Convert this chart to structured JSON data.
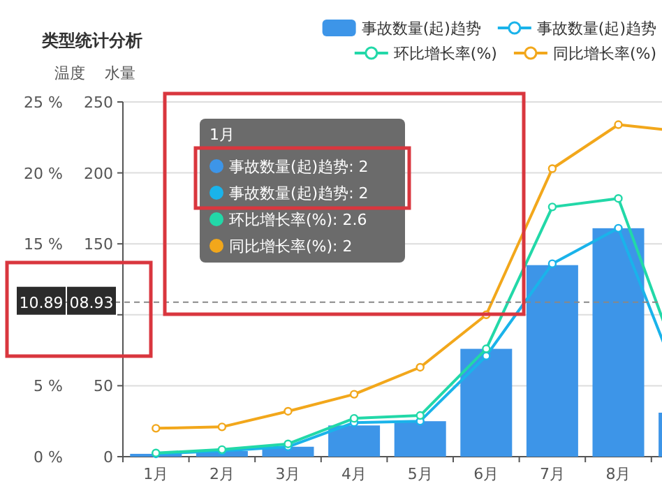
{
  "chart_data": {
    "type": "bar",
    "title": "类型统计分析",
    "ylabel": "温度",
    "y2label": "水量",
    "categories": [
      "1月",
      "2月",
      "3月",
      "4月",
      "5月",
      "6月",
      "7月",
      "8月",
      null
    ],
    "series": [
      {
        "name": "事故数量(起)趋势",
        "axis": "y2",
        "color": "#3d95e8",
        "values": [
          2,
          4,
          7,
          22,
          25,
          76,
          135,
          161,
          31
        ]
      },
      {
        "name": "事故数量(起)趋势",
        "type": "line",
        "axis": "y2",
        "color": "#1ab3ea",
        "values": [
          2,
          4,
          7,
          24,
          25,
          71,
          136,
          161,
          43
        ]
      },
      {
        "name": "环比增长率(%)",
        "type": "line",
        "axis": "y2",
        "color": "#22d8a8",
        "values": [
          2.6,
          5,
          9,
          27,
          29,
          76,
          176,
          182,
          55
        ]
      },
      {
        "name": "同比增长率(%)",
        "type": "line",
        "axis": "y",
        "color": "#f2a71b",
        "values": [
          2,
          2.1,
          3.2,
          4.4,
          6.3,
          10,
          20.3,
          23.4,
          22.9
        ]
      }
    ],
    "ylim": [
      0,
      25
    ],
    "yticks": [
      {
        "value": 0,
        "label": "0 %"
      },
      {
        "value": 5,
        "label": "5 %"
      },
      {
        "value": 10,
        "label": null
      },
      {
        "value": 15,
        "label": "15 %"
      },
      {
        "value": 20,
        "label": "20 %"
      },
      {
        "value": 25,
        "label": "25 %"
      }
    ],
    "y2lim": [
      0,
      250
    ],
    "y2ticks": [
      0,
      50,
      {
        "value": 100,
        "label": null
      },
      150,
      200,
      250
    ],
    "grid": "y",
    "legend": "top right",
    "marker": "circle",
    "line_style": "solid",
    "ref_lines": [
      {
        "axis": "y",
        "value": 10.89,
        "label": "10.89"
      }
    ],
    "annotations": [
      "1月",
      "事故数量(起)趋势: 2",
      "事故数量(起)趋势: 2",
      "环比增长率(%): 2.6",
      "同比增长率(%): 2",
      "08.93"
    ]
  }
}
